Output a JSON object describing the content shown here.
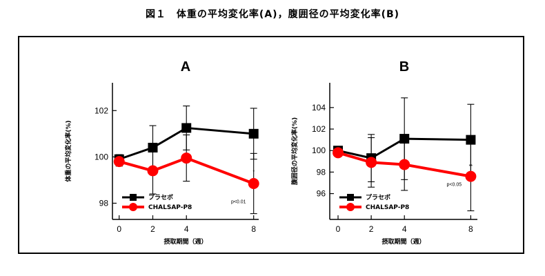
{
  "caption": "図１　体重の平均変化率(A)，腹囲径の平均変化率(B)",
  "chart_data": [
    {
      "type": "line",
      "title": "A",
      "xlabel": "摂取期間（週）",
      "ylabel": "体重の平均変化率(%)",
      "x": [
        0,
        2,
        4,
        8
      ],
      "xticks": [
        "0",
        "2",
        "4",
        "8"
      ],
      "ylim": [
        97.3,
        103.2
      ],
      "yticks": [
        98,
        100,
        102
      ],
      "series": [
        {
          "name": "プラセボ",
          "color": "#000000",
          "marker": "square",
          "values": [
            99.9,
            100.4,
            101.25,
            101.0
          ],
          "errors": [
            0.2,
            0.95,
            0.95,
            1.1
          ]
        },
        {
          "name": "CHALSAP-P8",
          "color": "#ff0000",
          "marker": "circle",
          "values": [
            99.8,
            99.4,
            99.95,
            98.85
          ],
          "errors": [
            0.2,
            1.0,
            1.0,
            1.3
          ]
        }
      ],
      "annotations": [
        {
          "text": "p<0.01",
          "x": 7.1,
          "y": 98.0
        },
        {
          "text": "*",
          "x": 8,
          "y": 99.3
        }
      ]
    },
    {
      "type": "line",
      "title": "B",
      "xlabel": "摂取期間（週）",
      "ylabel": "腹囲径の平均変化率(%)",
      "x": [
        0,
        2,
        4,
        8
      ],
      "xticks": [
        "0",
        "2",
        "4",
        "8"
      ],
      "ylim": [
        93.6,
        106.3
      ],
      "yticks": [
        96,
        98,
        100,
        102,
        104
      ],
      "series": [
        {
          "name": "プラセボ",
          "color": "#000000",
          "marker": "square",
          "values": [
            100.0,
            99.3,
            101.1,
            101.0
          ],
          "errors": [
            0.25,
            2.2,
            3.8,
            3.3
          ]
        },
        {
          "name": "CHALSAP-P8",
          "color": "#ff0000",
          "marker": "circle",
          "values": [
            99.8,
            98.9,
            98.7,
            97.6
          ],
          "errors": [
            0.3,
            2.3,
            2.4,
            3.2
          ]
        }
      ],
      "annotations": [
        {
          "text": "p<0.05",
          "x": 7.0,
          "y": 96.7
        },
        {
          "text": "**",
          "x": 8,
          "y": 98.4
        }
      ]
    }
  ]
}
